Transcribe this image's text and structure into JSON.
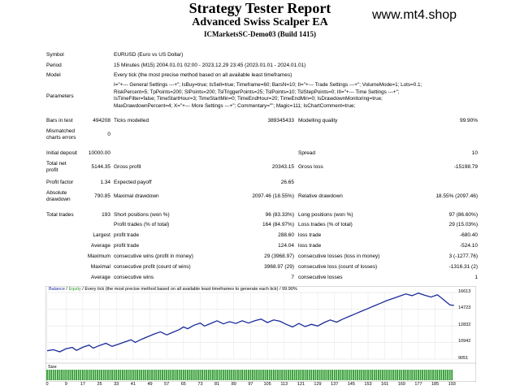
{
  "header": {
    "title": "Strategy Tester Report",
    "ea": "Advanced Swiss Scalper EA",
    "account": "ICMarketsSC-Demo03 (Build 1415)",
    "brand": "www.mt4.shop"
  },
  "info": {
    "symbol_label": "Symbol",
    "symbol": "EURUSD (Euro vs US Dollar)",
    "period_label": "Period",
    "period": "15 Minutes (M15) 2004.01.01 02:00 - 2023.12.29 23:45 (2023.01.01 - 2024.01.01)",
    "model_label": "Model",
    "model": "Every tick (the most precise method based on all available least timeframes)",
    "parameters_label": "Parameters",
    "parameters": [
      "I=\"+--- General Settings ---+\"; IsBuy=true; IsSell=true; Timeframe=60; BarsN=10; II=\"+--- Trade Settings ---+\"; VolumeMode=1; Lots=0.1;",
      "RiskPercent=5; TpPoints=200; SlPoints=200; TslTriggerPoints=25; TslPoints=10; TslStepPoints=0; III=\"+--- Time Settings ---+\";",
      "IsTimeFilter=false; TimeStartHour=3; TimeStartMin=0; TimeEndHour=20; TimeEndMin=0; IsDrawdownMonitoring=true;",
      "MaxDrawdownPercent=4; X=\"+--- More Settings ---+\"; Commentary=\"\"; Magic=111; IsChartComment=true;"
    ]
  },
  "stats": {
    "bars_label": "Bars in test",
    "bars": "494208",
    "ticks_label": "Ticks modelled",
    "ticks": "389345433",
    "mq_label": "Modelling quality",
    "mq": "99.90%",
    "mismatch_label_1": "Mismatched",
    "mismatch_label_2": "charts errors",
    "mismatch": "0",
    "initdep_label": "Initial deposit",
    "initdep": "10000.00",
    "spread_label": "Spread",
    "spread": "10",
    "netprofit_label_1": "Total net",
    "netprofit_label_2": "profit",
    "netprofit": "5144.35",
    "grossprofit_label": "Gross profit",
    "grossprofit": "20343.15",
    "grossloss_label": "Gross loss",
    "grossloss": "-15198.79",
    "pf_label": "Profit factor",
    "pf": "1.34",
    "ep_label": "Expected payoff",
    "ep": "26.65",
    "absdd_label_1": "Absolute",
    "absdd_label_2": "drawdown",
    "absdd": "790.85",
    "maxdd_label": "Maximal drawdown",
    "maxdd": "2097.46 (18.55%)",
    "reldd_label": "Relative drawdown",
    "reldd": "18.55% (2097.46)",
    "tt_label": "Total trades",
    "tt": "193",
    "short_label": "Short positions (won %)",
    "short": "96 (83.33%)",
    "long_label": "Long positions (won %)",
    "long": "97 (86.60%)",
    "ptrades_label": "Profit trades (% of total)",
    "ptrades": "164 (84.97%)",
    "ltrades_label": "Loss trades (% of total)",
    "ltrades": "29 (15.03%)",
    "largest_label": "Largest",
    "lp_label": "profit trade",
    "lp": "288.60",
    "lt_label": "loss trade",
    "lt": "-680.40",
    "average_label": "Average",
    "ap_label": "profit trade",
    "ap": "124.04",
    "al_label": "loss trade",
    "al": "-524.10",
    "maximum_label": "Maximum",
    "mcw_label": "consecutive wins (profit in money)",
    "mcw": "29 (3968.97)",
    "mcl_label": "consecutive losses (loss in money)",
    "mcl": "3 (-1277.76)",
    "maximal_label": "Maximal",
    "mcp_label": "consecutive profit (count of wins)",
    "mcp": "3968.97 (29)",
    "mcl2_label": "consecutive loss (count of losses)",
    "mcl2": "-1316.31 (2)",
    "average2_label": "Average",
    "acw_label": "consecutive wins",
    "acw": "7",
    "acl_label": "consecutive losses",
    "acl": "1"
  },
  "chart_data": {
    "type": "line",
    "legend_balance": "Balance",
    "legend_sep": " / ",
    "legend_equity": "Equity",
    "legend_rest": " / Every tick (the most precise method based on all available least timeframes to generate each tick) / 99.90%",
    "size_label": "Size",
    "yticks": [
      "16613",
      "14723",
      "12832",
      "10942",
      "9051"
    ],
    "ylim": [
      9051,
      16613
    ],
    "xticks": [
      "0",
      "9",
      "17",
      "25",
      "33",
      "41",
      "49",
      "57",
      "65",
      "73",
      "81",
      "89",
      "97",
      "105",
      "113",
      "121",
      "129",
      "137",
      "145",
      "153",
      "161",
      "169",
      "177",
      "185",
      "193"
    ],
    "xlim": [
      0,
      196
    ],
    "color_balance": "#1a2b9a",
    "color_equity": "#2e9a2e",
    "balance": [
      [
        0,
        10000
      ],
      [
        3,
        10120
      ],
      [
        6,
        9880
      ],
      [
        9,
        10220
      ],
      [
        12,
        10380
      ],
      [
        14,
        10050
      ],
      [
        17,
        10400
      ],
      [
        20,
        10650
      ],
      [
        22,
        10300
      ],
      [
        25,
        10600
      ],
      [
        28,
        10850
      ],
      [
        31,
        10500
      ],
      [
        34,
        10750
      ],
      [
        37,
        11000
      ],
      [
        40,
        11250
      ],
      [
        42,
        10950
      ],
      [
        45,
        11300
      ],
      [
        48,
        11600
      ],
      [
        51,
        11900
      ],
      [
        54,
        12150
      ],
      [
        57,
        11800
      ],
      [
        60,
        12100
      ],
      [
        63,
        12400
      ],
      [
        65,
        12700
      ],
      [
        67,
        12500
      ],
      [
        70,
        12900
      ],
      [
        73,
        13150
      ],
      [
        75,
        12800
      ],
      [
        78,
        13100
      ],
      [
        81,
        13400
      ],
      [
        84,
        13050
      ],
      [
        87,
        13300
      ],
      [
        90,
        13100
      ],
      [
        93,
        13400
      ],
      [
        96,
        13150
      ],
      [
        99,
        13400
      ],
      [
        102,
        13600
      ],
      [
        105,
        13200
      ],
      [
        108,
        13500
      ],
      [
        111,
        13350
      ],
      [
        114,
        13000
      ],
      [
        117,
        12700
      ],
      [
        120,
        13100
      ],
      [
        123,
        12750
      ],
      [
        126,
        13000
      ],
      [
        129,
        12800
      ],
      [
        132,
        13200
      ],
      [
        135,
        13500
      ],
      [
        138,
        13250
      ],
      [
        141,
        13600
      ],
      [
        144,
        13900
      ],
      [
        147,
        14200
      ],
      [
        150,
        14500
      ],
      [
        153,
        14800
      ],
      [
        156,
        15100
      ],
      [
        159,
        15400
      ],
      [
        162,
        15700
      ],
      [
        165,
        15950
      ],
      [
        168,
        16200
      ],
      [
        171,
        16450
      ],
      [
        174,
        16250
      ],
      [
        177,
        16550
      ],
      [
        180,
        16300
      ],
      [
        183,
        16100
      ],
      [
        186,
        16350
      ],
      [
        188,
        16000
      ],
      [
        190,
        15600
      ],
      [
        192,
        15200
      ],
      [
        194,
        15144
      ]
    ]
  }
}
